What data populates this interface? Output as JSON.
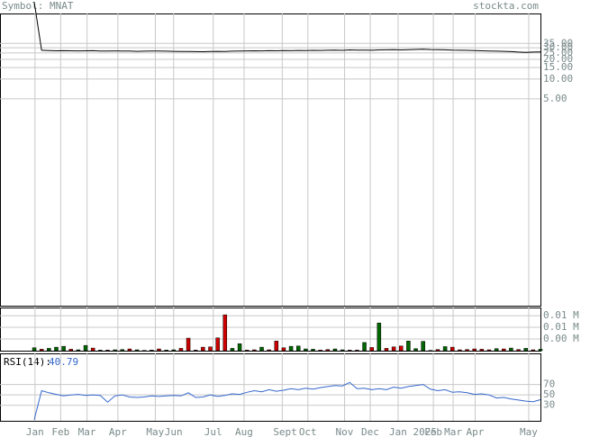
{
  "chart_data": [
    {
      "type": "line",
      "title": "Symbol: MNAT",
      "source": "stockta.com",
      "log_scale": true,
      "grid": true,
      "color": "#000000",
      "values": [
        150,
        27.5,
        27.2,
        27.0,
        27.1,
        27.0,
        26.9,
        27.0,
        27.1,
        26.8,
        26.7,
        26.9,
        26.8,
        26.7,
        26.5,
        26.6,
        26.8,
        26.7,
        26.6,
        26.5,
        26.3,
        26.4,
        26.2,
        26.1,
        26.3,
        26.5,
        26.4,
        26.6,
        26.8,
        26.9,
        27.0,
        26.9,
        27.1,
        27.0,
        27.2,
        27.1,
        27.3,
        27.2,
        27.4,
        27.3,
        27.5,
        27.6,
        27.4,
        27.8,
        27.6,
        27.7,
        27.5,
        27.8,
        27.9,
        28.0,
        27.8,
        28.1,
        28.3,
        28.6,
        28.2,
        28.0,
        27.9,
        27.6,
        27.5,
        27.4,
        27.2,
        27.0,
        26.8,
        26.6,
        26.5,
        26.2,
        25.8,
        25.6,
        25.8,
        25.9
      ],
      "ylim": [
        0.0035,
        100
      ],
      "yticks": [
        {
          "value": 35,
          "label": "35.00"
        },
        {
          "value": 30,
          "label": "30.00"
        },
        {
          "value": 25,
          "label": "25.00"
        },
        {
          "value": 20,
          "label": "20.00"
        },
        {
          "value": 15,
          "label": "15.00"
        },
        {
          "value": 10,
          "label": "10.00"
        },
        {
          "value": 5,
          "label": "5.00"
        }
      ]
    },
    {
      "type": "bar",
      "grid": true,
      "values": [
        0.001,
        0.0005,
        0.0008,
        0.0012,
        0.0015,
        0.0005,
        0.0003,
        0.0018,
        0.0009,
        0.0002,
        0.0002,
        0.0003,
        0.0004,
        0.0006,
        0.0003,
        0.0001,
        0.0002,
        0.0006,
        0.0002,
        0.0003,
        0.0008,
        0.0043,
        0.0002,
        0.0012,
        0.0013,
        0.0044,
        0.0123,
        0.0008,
        0.0024,
        0.0002,
        0.0003,
        0.0012,
        0.0003,
        0.0033,
        0.001,
        0.0015,
        0.0016,
        0.0006,
        0.0005,
        0.0002,
        0.0004,
        0.0006,
        0.0003,
        0.0002,
        0.0002,
        0.0028,
        0.0011,
        0.0095,
        0.0008,
        0.0013,
        0.0016,
        0.0033,
        0.0007,
        0.0032,
        0.0001,
        0.0004,
        0.0014,
        0.0012,
        0.0003,
        0.0004,
        0.0006,
        0.0005,
        0.0003,
        0.0007,
        0.0006,
        0.0009,
        0.0004,
        0.0008,
        0.0003,
        0.0005
      ],
      "colors": [
        "#006600",
        "#cc0000",
        "#006600",
        "#006600",
        "#006600",
        "#cc0000",
        "#006600",
        "#006600",
        "#cc0000",
        "#006600",
        "#cc0000",
        "#006600",
        "#006600",
        "#cc0000",
        "#006600",
        "#cc0000",
        "#006600",
        "#cc0000",
        "#006600",
        "#006600",
        "#cc0000",
        "#cc0000",
        "#cc0000",
        "#cc0000",
        "#cc0000",
        "#cc0000",
        "#cc0000",
        "#006600",
        "#006600",
        "#cc0000",
        "#cc0000",
        "#006600",
        "#cc0000",
        "#cc0000",
        "#cc0000",
        "#006600",
        "#006600",
        "#006600",
        "#006600",
        "#cc0000",
        "#cc0000",
        "#006600",
        "#006600",
        "#cc0000",
        "#cc0000",
        "#006600",
        "#cc0000",
        "#006600",
        "#cc0000",
        "#cc0000",
        "#cc0000",
        "#006600",
        "#006600",
        "#006600",
        "#006600",
        "#cc0000",
        "#006600",
        "#cc0000",
        "#cc0000",
        "#cc0000",
        "#cc0000",
        "#cc0000",
        "#cc0000",
        "#006600",
        "#cc0000",
        "#006600",
        "#cc0000",
        "#006600",
        "#cc0000",
        "#006600"
      ],
      "ylim": [
        0,
        0.0148
      ],
      "yticks": [
        {
          "value": 0.012,
          "label": "0.01 M"
        },
        {
          "value": 0.008,
          "label": "0.01 M"
        },
        {
          "value": 0.004,
          "label": "0.00 M"
        }
      ]
    },
    {
      "type": "line",
      "title": "RSI(14):",
      "grid": true,
      "color": "#3366cc",
      "values": [
        2,
        58,
        54,
        51,
        48,
        50,
        51,
        49,
        50,
        49,
        36,
        48,
        50,
        46,
        45,
        46,
        48,
        47,
        48,
        49,
        48,
        54,
        45,
        46,
        50,
        47,
        49,
        52,
        51,
        55,
        58,
        56,
        60,
        57,
        59,
        62,
        60,
        63,
        61,
        64,
        66,
        68,
        67,
        74,
        62,
        63,
        60,
        62,
        60,
        65,
        63,
        66,
        68,
        70,
        61,
        58,
        60,
        55,
        56,
        54,
        51,
        52,
        50,
        44,
        45,
        42,
        40,
        38,
        37,
        40.79
      ],
      "ylim": [
        0,
        130
      ],
      "yticks": [
        70,
        50,
        30
      ],
      "xlim": [
        -0.25,
        69
      ],
      "xticks": [
        {
          "value": 0.1,
          "label": "Jan"
        },
        {
          "value": 3.6,
          "label": "Feb"
        },
        {
          "value": 7.2,
          "label": "Mar"
        },
        {
          "value": 11.4,
          "label": "Apr"
        },
        {
          "value": 16.5,
          "label": "May"
        },
        {
          "value": 19.0,
          "label": "Jun"
        },
        {
          "value": 24.4,
          "label": "Jul"
        },
        {
          "value": 28.6,
          "label": "Aug"
        },
        {
          "value": 33.8,
          "label": "Sept"
        },
        {
          "value": 37.3,
          "label": "Oct"
        },
        {
          "value": 42.3,
          "label": "Nov"
        },
        {
          "value": 45.8,
          "label": "Dec"
        },
        {
          "value": 49.6,
          "label": "Jan 2025"
        },
        {
          "value": 54.4,
          "label": "Feb"
        },
        {
          "value": 57.1,
          "label": "Mar"
        },
        {
          "value": 60.1,
          "label": "Apr"
        },
        {
          "value": 67.4,
          "label": "May"
        }
      ]
    }
  ]
}
